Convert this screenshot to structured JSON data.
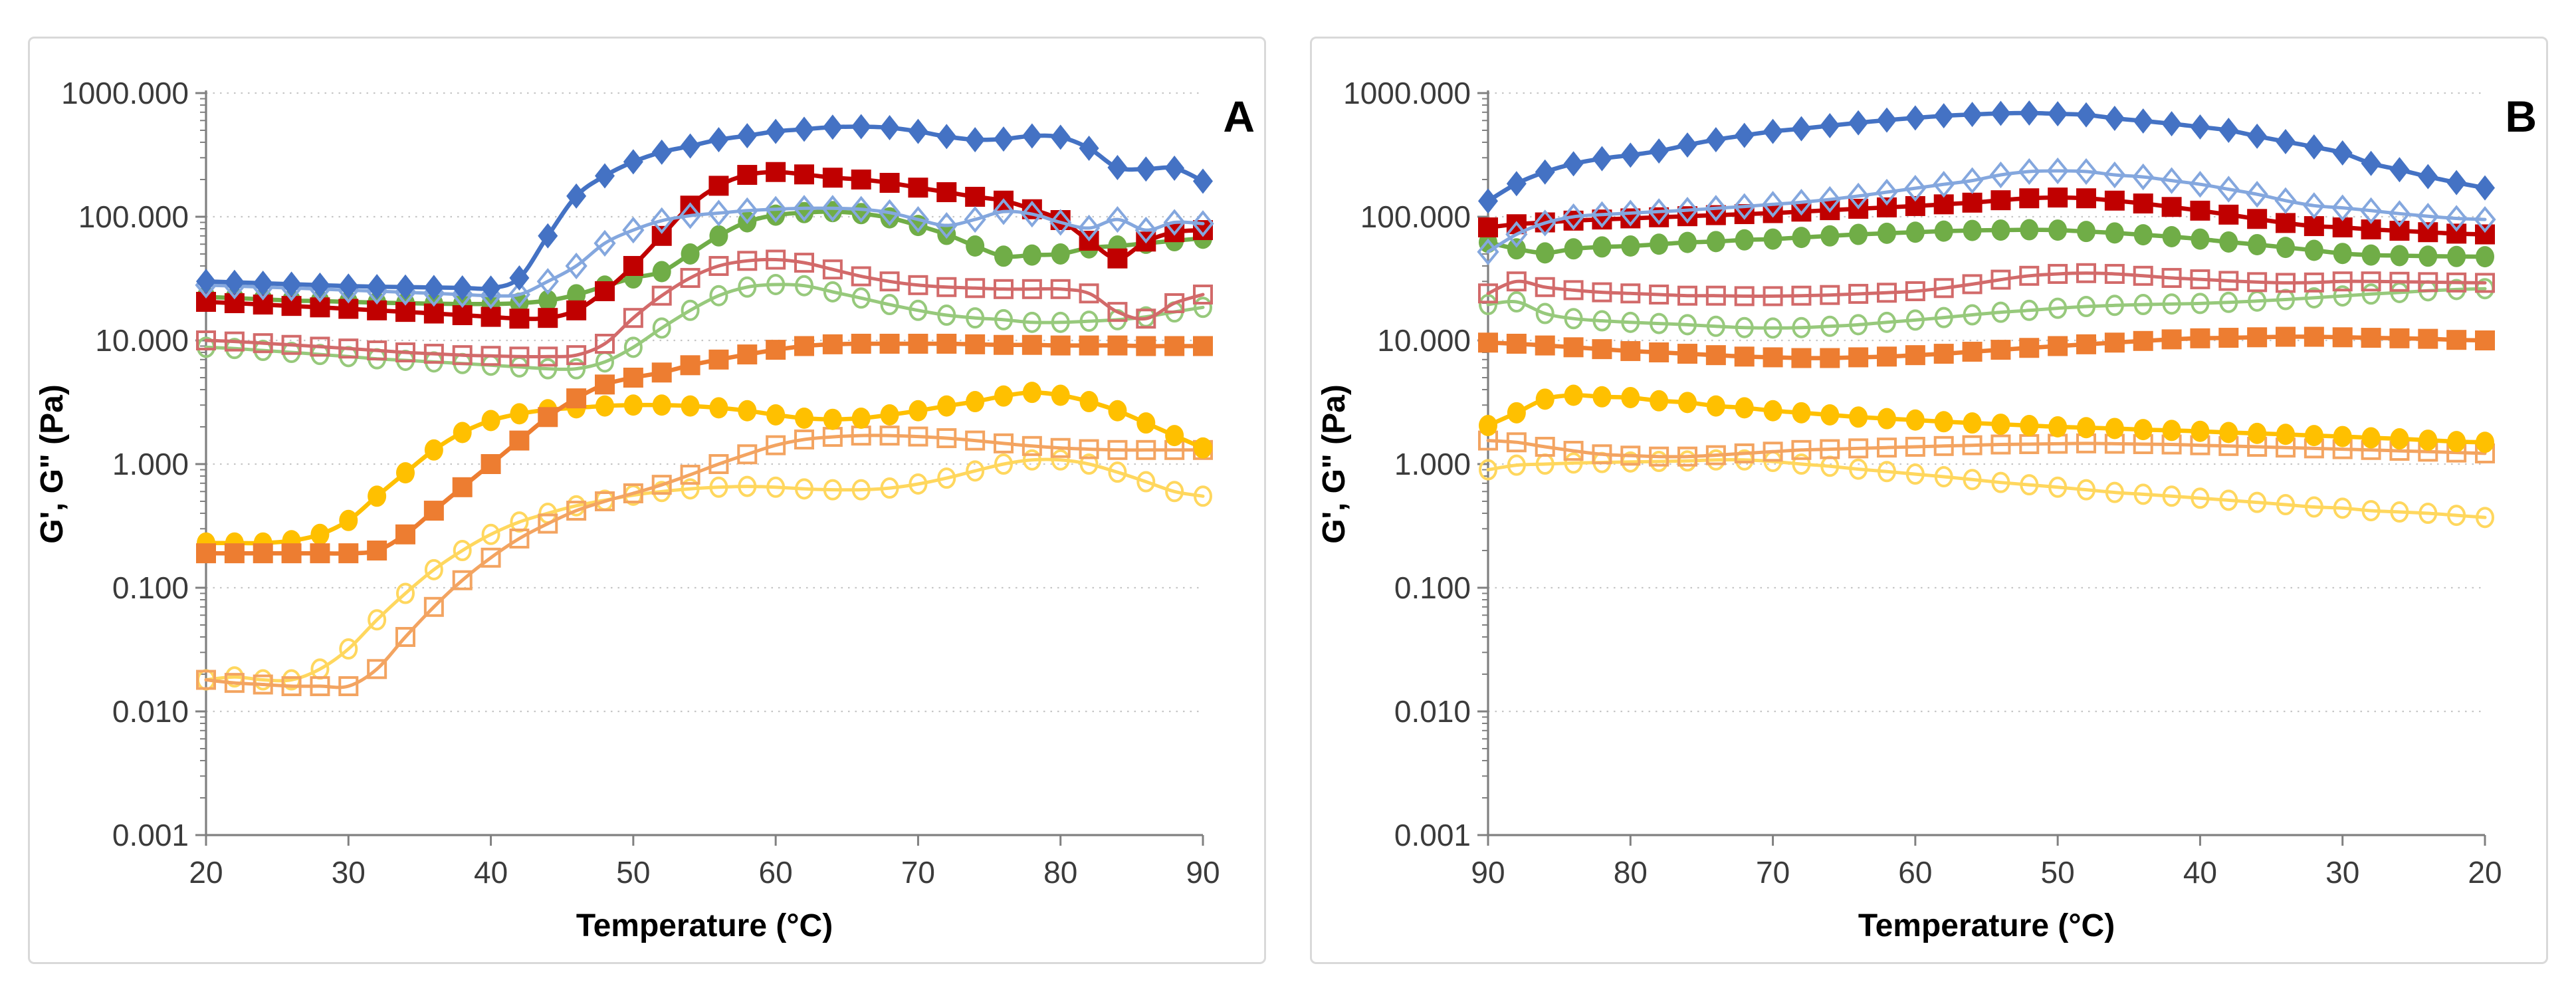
{
  "figure_title": "",
  "chart_data": [
    {
      "type": "line",
      "panel_label": "A",
      "xlabel": "Temperature (°C)",
      "ylabel": "G', G\" (Pa)",
      "x_axis": {
        "left_value": 20,
        "right_value": 90,
        "ticks": [
          20,
          30,
          40,
          50,
          60,
          70,
          80,
          90
        ],
        "reversed": false
      },
      "y_axis": {
        "scale": "log",
        "min": 0.001,
        "max": 1000,
        "tick_labels": [
          "1000.000",
          "100.000",
          "10.000",
          "1.000",
          "0.100",
          "0.010",
          "0.001"
        ],
        "tick_decades": [
          3,
          2,
          1,
          0,
          -1,
          -2,
          -3
        ],
        "grid": "dotted"
      },
      "x": [
        20,
        22,
        24,
        26,
        28,
        30,
        32,
        34,
        36,
        38,
        40,
        42,
        44,
        46,
        48,
        50,
        52,
        54,
        56,
        58,
        60,
        62,
        64,
        66,
        68,
        70,
        72,
        74,
        76,
        78,
        80,
        82,
        84,
        86,
        88,
        90
      ],
      "series": [
        {
          "id": "yellow-open",
          "role": "G\"",
          "marker": "circle",
          "open": true,
          "color": "#FFD75E",
          "values": [
            0.018,
            0.019,
            0.018,
            0.018,
            0.022,
            0.032,
            0.055,
            0.09,
            0.14,
            0.2,
            0.27,
            0.34,
            0.4,
            0.46,
            0.51,
            0.56,
            0.6,
            0.63,
            0.65,
            0.66,
            0.65,
            0.63,
            0.62,
            0.62,
            0.64,
            0.69,
            0.77,
            0.88,
            1.0,
            1.08,
            1.08,
            1.0,
            0.86,
            0.72,
            0.6,
            0.55
          ]
        },
        {
          "id": "orange-open",
          "role": "G\"",
          "marker": "square",
          "open": true,
          "color": "#F3A461",
          "values": [
            0.018,
            0.017,
            0.0165,
            0.016,
            0.016,
            0.016,
            0.022,
            0.04,
            0.07,
            0.115,
            0.175,
            0.25,
            0.33,
            0.42,
            0.5,
            0.58,
            0.68,
            0.82,
            1.0,
            1.2,
            1.42,
            1.58,
            1.66,
            1.7,
            1.7,
            1.67,
            1.62,
            1.55,
            1.47,
            1.4,
            1.35,
            1.32,
            1.3,
            1.3,
            1.3,
            1.3
          ]
        },
        {
          "id": "yellow-filled",
          "role": "G'",
          "marker": "circle",
          "open": false,
          "color": "#FFC000",
          "values": [
            0.23,
            0.23,
            0.23,
            0.24,
            0.27,
            0.35,
            0.55,
            0.85,
            1.3,
            1.8,
            2.25,
            2.55,
            2.75,
            2.85,
            2.95,
            3.0,
            3.0,
            2.95,
            2.85,
            2.7,
            2.5,
            2.35,
            2.3,
            2.35,
            2.5,
            2.7,
            2.95,
            3.2,
            3.55,
            3.8,
            3.6,
            3.2,
            2.7,
            2.15,
            1.7,
            1.35
          ]
        },
        {
          "id": "orange-filled",
          "role": "G'",
          "marker": "square",
          "open": false,
          "color": "#ED7D31",
          "values": [
            0.19,
            0.19,
            0.19,
            0.19,
            0.19,
            0.19,
            0.2,
            0.27,
            0.42,
            0.65,
            1.0,
            1.55,
            2.4,
            3.4,
            4.4,
            5.0,
            5.5,
            6.3,
            7.0,
            7.7,
            8.4,
            9.0,
            9.3,
            9.4,
            9.4,
            9.4,
            9.4,
            9.3,
            9.2,
            9.2,
            9.1,
            9.1,
            9.1,
            9.0,
            9.0,
            9.0
          ]
        },
        {
          "id": "green-open",
          "role": "G\"",
          "marker": "circle",
          "open": true,
          "color": "#97C97C",
          "values": [
            8.8,
            8.6,
            8.3,
            8.0,
            7.7,
            7.4,
            7.1,
            6.9,
            6.7,
            6.5,
            6.3,
            6.1,
            5.9,
            5.9,
            6.7,
            8.8,
            12.6,
            17.5,
            23,
            27,
            28.3,
            27.7,
            24.7,
            22,
            19.5,
            17.5,
            16,
            15.2,
            14.7,
            14,
            14,
            14.3,
            14.7,
            15.5,
            17,
            18.5
          ]
        },
        {
          "id": "red-open",
          "role": "G\"",
          "marker": "square",
          "open": true,
          "color": "#D26A6A",
          "values": [
            10,
            9.8,
            9.5,
            9.2,
            8.9,
            8.6,
            8.3,
            8.0,
            7.8,
            7.6,
            7.5,
            7.4,
            7.4,
            7.6,
            9.4,
            15.2,
            23,
            32,
            40,
            44,
            45,
            42.5,
            37.5,
            33,
            30,
            28,
            27,
            26.5,
            26,
            26,
            26,
            24,
            17,
            15,
            20,
            23.5
          ]
        },
        {
          "id": "green-filled",
          "role": "G'",
          "marker": "circle",
          "open": false,
          "color": "#70AD47",
          "values": [
            22.5,
            22,
            21.5,
            21,
            20.8,
            20.5,
            20.2,
            20,
            19.8,
            19.7,
            19.7,
            20,
            21,
            23.4,
            27.5,
            32,
            36,
            50,
            70,
            91,
            103,
            108,
            110,
            106,
            98,
            85,
            72,
            58,
            48,
            49,
            50,
            56,
            58,
            61,
            64,
            67
          ]
        },
        {
          "id": "red-filled",
          "role": "G'",
          "marker": "square",
          "open": false,
          "color": "#C00000",
          "values": [
            20.5,
            20,
            19.5,
            19,
            18.5,
            18,
            17.5,
            17,
            16.5,
            16,
            15.5,
            15,
            15.2,
            17.5,
            25,
            40,
            70,
            123,
            178,
            218,
            230,
            220,
            207,
            200,
            188,
            172,
            158,
            145,
            135,
            115,
            94,
            64,
            46,
            63,
            75,
            78
          ]
        },
        {
          "id": "blue-open",
          "role": "G\"",
          "marker": "diamond",
          "open": true,
          "color": "#84A7DE",
          "values": [
            28,
            27.5,
            27,
            26.5,
            26,
            25.5,
            25,
            24.5,
            24,
            23.5,
            23,
            23.5,
            30,
            40,
            61,
            78,
            93,
            102,
            107,
            112,
            115,
            117,
            117,
            115,
            108,
            95,
            85,
            95,
            110,
            105,
            90,
            81,
            95,
            78,
            90,
            88
          ]
        },
        {
          "id": "blue-filled",
          "role": "G'",
          "marker": "diamond",
          "open": false,
          "color": "#4472C4",
          "values": [
            30,
            29.5,
            29,
            28.5,
            28,
            27.5,
            27.2,
            27,
            26.8,
            26.6,
            26.5,
            32,
            70,
            147,
            214,
            278,
            333,
            373,
            420,
            452,
            490,
            510,
            530,
            535,
            525,
            490,
            445,
            420,
            425,
            450,
            440,
            358,
            250,
            243,
            247,
            194
          ]
        }
      ]
    },
    {
      "type": "line",
      "panel_label": "B",
      "xlabel": "Temperature (°C)",
      "ylabel": "G', G\" (Pa)",
      "x_axis": {
        "left_value": 90,
        "right_value": 20,
        "ticks": [
          90,
          80,
          70,
          60,
          50,
          40,
          30,
          20
        ],
        "reversed": true
      },
      "y_axis": {
        "scale": "log",
        "min": 0.001,
        "max": 1000,
        "tick_labels": [
          "1000.000",
          "100.000",
          "10.000",
          "1.000",
          "0.100",
          "0.010",
          "0.001"
        ],
        "tick_decades": [
          3,
          2,
          1,
          0,
          -1,
          -2,
          -3
        ],
        "grid": "dotted"
      },
      "x": [
        90,
        88,
        86,
        84,
        82,
        80,
        78,
        76,
        74,
        72,
        70,
        68,
        66,
        64,
        62,
        60,
        58,
        56,
        54,
        52,
        50,
        48,
        46,
        44,
        42,
        40,
        38,
        36,
        34,
        32,
        30,
        28,
        26,
        24,
        22,
        20
      ],
      "series": [
        {
          "id": "yellow-open",
          "role": "G\"",
          "marker": "circle",
          "open": true,
          "color": "#FFD75E",
          "values": [
            0.9,
            0.98,
            1.0,
            1.02,
            1.03,
            1.04,
            1.05,
            1.06,
            1.08,
            1.08,
            1.05,
            1.0,
            0.96,
            0.91,
            0.87,
            0.83,
            0.79,
            0.75,
            0.71,
            0.68,
            0.65,
            0.62,
            0.59,
            0.57,
            0.55,
            0.53,
            0.51,
            0.49,
            0.47,
            0.45,
            0.44,
            0.42,
            0.41,
            0.4,
            0.385,
            0.37
          ]
        },
        {
          "id": "orange-open",
          "role": "G\"",
          "marker": "square",
          "open": true,
          "color": "#F3A461",
          "values": [
            1.55,
            1.5,
            1.38,
            1.28,
            1.2,
            1.17,
            1.15,
            1.15,
            1.18,
            1.22,
            1.26,
            1.3,
            1.32,
            1.34,
            1.36,
            1.38,
            1.4,
            1.42,
            1.44,
            1.45,
            1.46,
            1.47,
            1.46,
            1.45,
            1.44,
            1.42,
            1.4,
            1.38,
            1.36,
            1.34,
            1.32,
            1.3,
            1.28,
            1.26,
            1.24,
            1.22
          ]
        },
        {
          "id": "yellow-filled",
          "role": "G'",
          "marker": "circle",
          "open": false,
          "color": "#FFC000",
          "values": [
            2.05,
            2.6,
            3.35,
            3.6,
            3.5,
            3.45,
            3.25,
            3.15,
            2.95,
            2.85,
            2.7,
            2.6,
            2.5,
            2.4,
            2.33,
            2.27,
            2.2,
            2.15,
            2.1,
            2.05,
            2.0,
            1.97,
            1.94,
            1.9,
            1.87,
            1.84,
            1.8,
            1.77,
            1.74,
            1.7,
            1.67,
            1.63,
            1.6,
            1.56,
            1.52,
            1.5
          ]
        },
        {
          "id": "orange-filled",
          "role": "G'",
          "marker": "square",
          "open": false,
          "color": "#ED7D31",
          "values": [
            9.6,
            9.4,
            9.1,
            8.8,
            8.5,
            8.2,
            8.0,
            7.8,
            7.6,
            7.4,
            7.3,
            7.2,
            7.2,
            7.3,
            7.4,
            7.6,
            7.8,
            8.1,
            8.4,
            8.7,
            9.0,
            9.3,
            9.6,
            9.9,
            10.2,
            10.4,
            10.5,
            10.6,
            10.7,
            10.7,
            10.6,
            10.5,
            10.4,
            10.3,
            10.1,
            10.0
          ]
        },
        {
          "id": "green-open",
          "role": "G\"",
          "marker": "circle",
          "open": true,
          "color": "#97C97C",
          "values": [
            19.5,
            20.5,
            16.5,
            15,
            14.4,
            14,
            13.7,
            13.4,
            13,
            12.7,
            12.6,
            12.7,
            13,
            13.4,
            14,
            14.6,
            15.3,
            16.1,
            16.9,
            17.5,
            18.2,
            18.8,
            19.2,
            19.5,
            19.7,
            19.9,
            20.3,
            20.8,
            21.4,
            22.1,
            22.9,
            23.7,
            24.4,
            25.2,
            25.8,
            26.2
          ]
        },
        {
          "id": "red-open",
          "role": "G\"",
          "marker": "square",
          "open": true,
          "color": "#D26A6A",
          "values": [
            24,
            30,
            27,
            25.5,
            24.5,
            24,
            23.5,
            23,
            23,
            22.8,
            22.8,
            23,
            23.3,
            23.8,
            24.3,
            25,
            26.5,
            28.5,
            31,
            33.3,
            34.5,
            35,
            34.5,
            33.3,
            32,
            31.2,
            30.3,
            29.6,
            29.2,
            29.4,
            30,
            30,
            29.8,
            29.6,
            29.4,
            29.2
          ]
        },
        {
          "id": "green-filled",
          "role": "G'",
          "marker": "circle",
          "open": false,
          "color": "#70AD47",
          "values": [
            62,
            55,
            51,
            55,
            57,
            58,
            60,
            62,
            63,
            65,
            66,
            68,
            70,
            72,
            73.5,
            75,
            76.5,
            77.5,
            78,
            78.5,
            78,
            76,
            74,
            71.5,
            69,
            66,
            62.5,
            59.5,
            56.5,
            53.5,
            50.5,
            49,
            48.5,
            48,
            47.7,
            47.5
          ]
        },
        {
          "id": "red-filled",
          "role": "G'",
          "marker": "square",
          "open": false,
          "color": "#C00000",
          "values": [
            82,
            87,
            90,
            93,
            95,
            97,
            99,
            101,
            103,
            105,
            107,
            110,
            113,
            116,
            119,
            122,
            126,
            130,
            136,
            141,
            143,
            141,
            135,
            128,
            120,
            112,
            104,
            96,
            89,
            84,
            82,
            79,
            77,
            75,
            73,
            72
          ]
        },
        {
          "id": "blue-open",
          "role": "G\"",
          "marker": "diamond",
          "open": true,
          "color": "#84A7DE",
          "values": [
            52,
            72,
            89,
            100,
            104,
            107,
            110,
            113,
            117,
            121,
            126,
            131,
            138,
            147,
            158,
            170,
            183,
            196,
            218,
            232,
            235,
            232,
            218,
            210,
            196,
            183,
            167,
            152,
            135,
            123,
            118,
            112,
            106,
            101,
            97,
            95
          ]
        },
        {
          "id": "blue-filled",
          "role": "G'",
          "marker": "diamond",
          "open": false,
          "color": "#4472C4",
          "values": [
            134,
            185,
            230,
            268,
            295,
            315,
            340,
            380,
            420,
            455,
            490,
            515,
            545,
            575,
            605,
            630,
            655,
            672,
            685,
            690,
            680,
            667,
            625,
            595,
            565,
            532,
            500,
            448,
            405,
            367,
            328,
            270,
            240,
            211,
            189,
            171
          ]
        }
      ]
    }
  ]
}
